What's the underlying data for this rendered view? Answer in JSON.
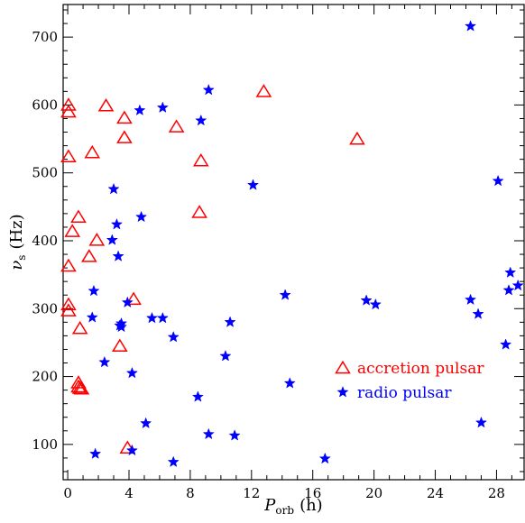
{
  "chart_data": {
    "type": "scatter",
    "xlabel": {
      "main": "P",
      "sub": "orb",
      "unit": "(h)"
    },
    "ylabel": {
      "main": "ν",
      "sub": "s",
      "unit": "(Hz)"
    },
    "xlim": [
      -0.3,
      29.8
    ],
    "ylim": [
      48,
      748
    ],
    "x_ticks": [
      0,
      4,
      8,
      12,
      16,
      20,
      24,
      28
    ],
    "x_minor_step": 1,
    "y_ticks": [
      100,
      200,
      300,
      400,
      500,
      600,
      700
    ],
    "y_minor_step": 20,
    "grid": false,
    "legend_position": "right-middle",
    "series": [
      {
        "name": "accretion pulsar",
        "marker": "open-triangle",
        "color": "#ff0000",
        "points": [
          [
            0.05,
            600
          ],
          [
            0.05,
            590
          ],
          [
            0.05,
            524
          ],
          [
            0.3,
            414
          ],
          [
            0.7,
            435
          ],
          [
            0.05,
            363
          ],
          [
            0.05,
            306
          ],
          [
            0.05,
            297
          ],
          [
            0.8,
            271
          ],
          [
            1.4,
            377
          ],
          [
            1.6,
            530
          ],
          [
            1.9,
            401
          ],
          [
            2.5,
            599
          ],
          [
            3.7,
            581
          ],
          [
            3.7,
            552
          ],
          [
            4.3,
            314
          ],
          [
            3.4,
            245
          ],
          [
            3.9,
            95
          ],
          [
            0.7,
            191
          ],
          [
            0.7,
            185
          ],
          [
            0.8,
            183
          ],
          [
            0.9,
            182
          ],
          [
            7.1,
            568
          ],
          [
            8.7,
            518
          ],
          [
            8.6,
            442
          ],
          [
            12.8,
            620
          ],
          [
            18.9,
            550
          ]
        ]
      },
      {
        "name": "radio pulsar",
        "marker": "star",
        "color": "#0000ff",
        "points": [
          [
            26.3,
            716
          ],
          [
            9.2,
            622
          ],
          [
            4.7,
            592
          ],
          [
            6.2,
            596
          ],
          [
            8.7,
            577
          ],
          [
            12.1,
            482
          ],
          [
            28.1,
            488
          ],
          [
            3.0,
            476
          ],
          [
            4.8,
            435
          ],
          [
            3.2,
            424
          ],
          [
            2.9,
            401
          ],
          [
            3.3,
            377
          ],
          [
            1.7,
            326
          ],
          [
            3.9,
            309
          ],
          [
            5.5,
            286
          ],
          [
            6.2,
            286
          ],
          [
            1.6,
            287
          ],
          [
            3.5,
            278
          ],
          [
            3.4,
            275
          ],
          [
            3.5,
            273
          ],
          [
            10.6,
            280
          ],
          [
            6.9,
            258
          ],
          [
            2.4,
            221
          ],
          [
            10.3,
            230
          ],
          [
            4.2,
            205
          ],
          [
            14.2,
            320
          ],
          [
            14.5,
            190
          ],
          [
            8.5,
            170
          ],
          [
            5.1,
            131
          ],
          [
            9.2,
            115
          ],
          [
            10.9,
            113
          ],
          [
            1.8,
            86
          ],
          [
            4.2,
            91
          ],
          [
            6.9,
            74
          ],
          [
            16.8,
            79
          ],
          [
            19.5,
            312
          ],
          [
            20.1,
            306
          ],
          [
            26.3,
            313
          ],
          [
            26.8,
            292
          ],
          [
            28.9,
            353
          ],
          [
            29.4,
            334
          ],
          [
            28.8,
            327
          ],
          [
            28.6,
            247
          ],
          [
            27.0,
            132
          ]
        ]
      }
    ]
  }
}
